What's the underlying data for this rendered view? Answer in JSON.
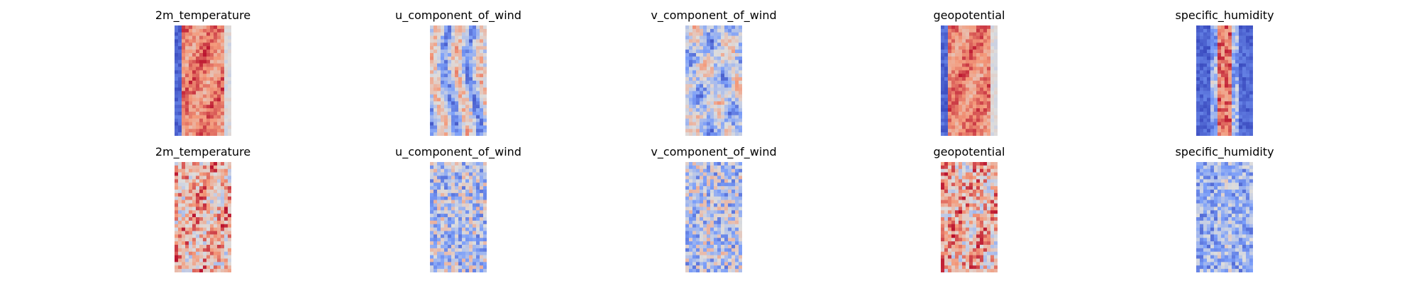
{
  "chart_data": [
    {
      "type": "heatmap",
      "title": "2m_temperature",
      "colormap": "coolwarm",
      "pattern": "warm-band",
      "row": 1,
      "col": 1
    },
    {
      "type": "heatmap",
      "title": "u_component_of_wind",
      "colormap": "coolwarm",
      "pattern": "streaks",
      "row": 1,
      "col": 2
    },
    {
      "type": "heatmap",
      "title": "v_component_of_wind",
      "colormap": "coolwarm",
      "pattern": "blobs",
      "row": 1,
      "col": 3
    },
    {
      "type": "heatmap",
      "title": "geopotential",
      "colormap": "coolwarm",
      "pattern": "warm-band",
      "row": 1,
      "col": 4
    },
    {
      "type": "heatmap",
      "title": "specific_humidity",
      "colormap": "coolwarm",
      "pattern": "humid-core",
      "row": 1,
      "col": 5
    },
    {
      "type": "heatmap",
      "title": "2m_temperature",
      "colormap": "coolwarm",
      "pattern": "noisy-warm",
      "row": 2,
      "col": 1
    },
    {
      "type": "heatmap",
      "title": "u_component_of_wind",
      "colormap": "coolwarm",
      "pattern": "noisy-cool",
      "row": 2,
      "col": 2
    },
    {
      "type": "heatmap",
      "title": "v_component_of_wind",
      "colormap": "coolwarm",
      "pattern": "noisy-cool",
      "row": 2,
      "col": 3
    },
    {
      "type": "heatmap",
      "title": "geopotential",
      "colormap": "coolwarm",
      "pattern": "noisy-warm",
      "row": 2,
      "col": 4
    },
    {
      "type": "heatmap",
      "title": "specific_humidity",
      "colormap": "coolwarm",
      "pattern": "noisy-blue",
      "row": 2,
      "col": 5
    }
  ]
}
